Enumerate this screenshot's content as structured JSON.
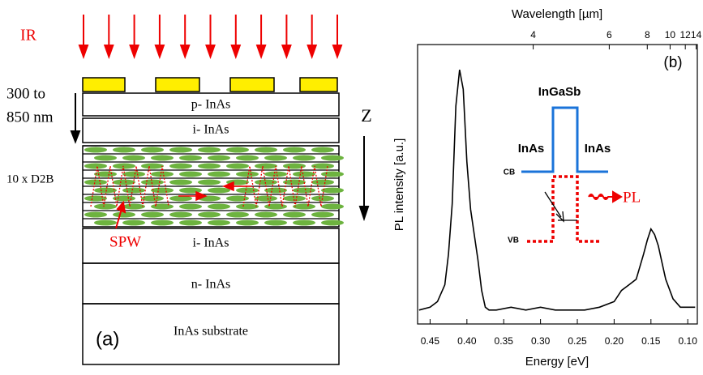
{
  "diagram": {
    "illumination": "IR",
    "range_line1": "300 to",
    "range_line2": "850 nm",
    "layers": [
      "p- InAs",
      "i- InAs",
      "10 x D2B",
      "i- InAs",
      "n- InAs",
      "InAs substrate"
    ],
    "axis_label": "Z",
    "wave_label": "SPW",
    "panel_label": "(a)"
  },
  "chart_data": {
    "type": "line",
    "panel_label": "(b)",
    "xlabel": "Energy [eV]",
    "ylabel": "PL intensity [a.u.]",
    "x2label": "Wavelength [µm]",
    "xlim": [
      0.467,
      0.087
    ],
    "ylim": [
      0,
      100
    ],
    "xticks": [
      0.45,
      {
        "value": 0.4,
        "label": "0.40"
      },
      0.35,
      {
        "value": 0.3,
        "label": "0.30"
      },
      0.25,
      {
        "value": 0.2,
        "label": "0.20"
      },
      0.15,
      {
        "value": 0.1,
        "label": "0.10"
      }
    ],
    "x2ticks": [
      4,
      6,
      8,
      10,
      12,
      14
    ],
    "x": [
      0.465,
      0.45,
      0.44,
      0.43,
      0.425,
      0.42,
      0.415,
      0.41,
      0.405,
      0.4,
      0.395,
      0.39,
      0.385,
      0.38,
      0.375,
      0.37,
      0.36,
      0.34,
      0.32,
      0.3,
      0.28,
      0.26,
      0.25,
      0.24,
      0.22,
      0.2,
      0.19,
      0.18,
      0.17,
      0.16,
      0.155,
      0.15,
      0.145,
      0.14,
      0.135,
      0.13,
      0.12,
      0.11,
      0.1,
      0.09
    ],
    "series": [
      {
        "color": "#000000",
        "values": [
          5,
          6,
          8,
          14,
          25,
          43,
          78,
          91,
          84,
          58,
          41,
          32,
          23,
          12,
          6,
          5,
          5,
          6,
          5,
          6,
          5,
          5,
          5,
          5,
          6,
          8,
          12,
          14,
          16,
          25,
          30,
          34,
          32,
          28,
          22,
          16,
          9,
          6,
          6,
          6
        ]
      }
    ],
    "inset": {
      "barrier": "InGaSb",
      "left_well": "InAs",
      "right_well": "InAs",
      "cb": "CB",
      "vb": "VB",
      "emission": "PL"
    }
  }
}
